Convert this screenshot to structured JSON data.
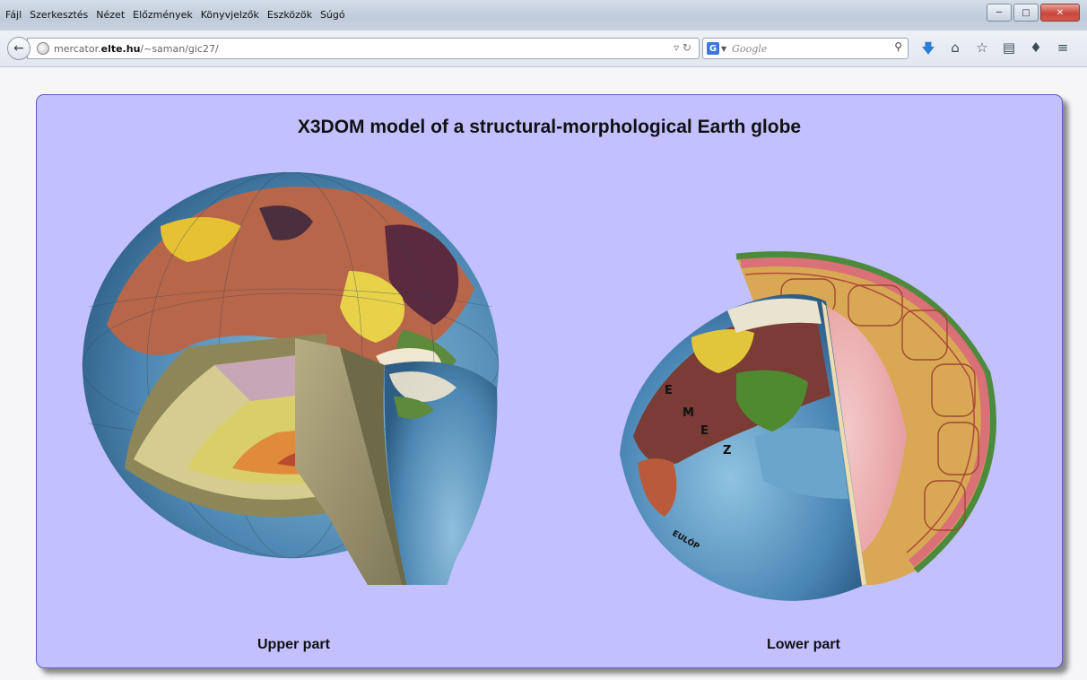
{
  "menu": [
    {
      "text": "Fájl"
    },
    {
      "text": "Szerkesztés"
    },
    {
      "text": "Nézet"
    },
    {
      "text": "Előzmények"
    },
    {
      "text": "Könyvjelzők"
    },
    {
      "text": "Eszközök"
    },
    {
      "text": "Súgó"
    }
  ],
  "address": {
    "prefix": "mercator.",
    "domain": "elte.hu",
    "path": "/~saman/gic27/"
  },
  "search": {
    "engine": "G",
    "placeholder": "Google"
  },
  "page": {
    "title": "X3DOM model of a structural-morphological Earth globe",
    "upper_label": "Upper part",
    "lower_label": "Lower part",
    "map_labels": [
      "E",
      "M",
      "E",
      "Z",
      "EULÓP"
    ]
  },
  "colors": {
    "card_bg": "#c3c0ff",
    "card_border": "#5d5dc4"
  }
}
